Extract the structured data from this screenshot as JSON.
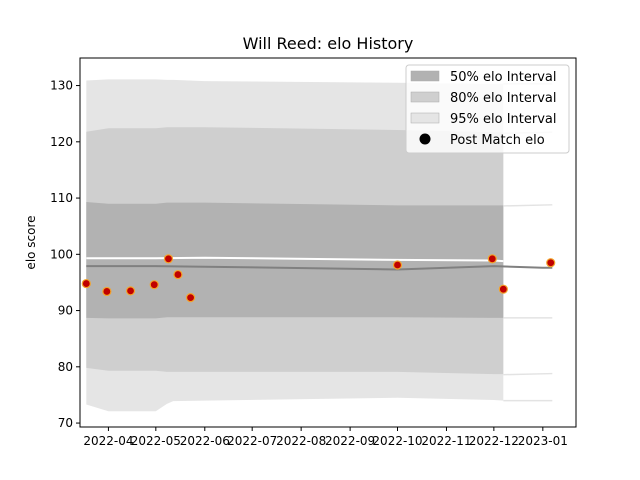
{
  "chart_data": {
    "type": "line",
    "title": "Will Reed: elo History",
    "ylabel": "elo score",
    "xlabel": "",
    "ylim": [
      69.3,
      134.9
    ],
    "xlim": [
      "2022-03-14",
      "2023-01-22"
    ],
    "x_ticks": [
      "2022-04",
      "2022-05",
      "2022-06",
      "2022-07",
      "2022-08",
      "2022-09",
      "2022-10",
      "2022-11",
      "2022-12",
      "2023-01"
    ],
    "y_ticks": [
      70,
      80,
      90,
      100,
      110,
      120,
      130
    ],
    "legend": {
      "placement": "top-right",
      "entries": [
        "50% elo Interval",
        "80% elo Interval",
        "95% elo Interval",
        "Post Match elo"
      ]
    },
    "colors": {
      "band50": "#b2b2b2",
      "band80": "#cfcfcf",
      "band95": "#e5e5e5",
      "mean_line": "#808080",
      "upper_line": "#ffffff",
      "point_fill": "#c00000",
      "point_edge": "#f3a32a"
    },
    "mean": [
      {
        "x": "2022-03-18",
        "y": 97.9
      },
      {
        "x": "2022-04-01",
        "y": 97.9
      },
      {
        "x": "2022-05-01",
        "y": 97.9
      },
      {
        "x": "2022-06-01",
        "y": 97.8
      },
      {
        "x": "2022-10-01",
        "y": 97.3
      },
      {
        "x": "2022-12-01",
        "y": 97.9
      },
      {
        "x": "2023-01-01",
        "y": 97.6
      },
      {
        "x": "2023-01-07",
        "y": 97.6
      }
    ],
    "upper_line": [
      {
        "x": "2022-03-18",
        "y": 99.3
      },
      {
        "x": "2022-05-01",
        "y": 99.3
      },
      {
        "x": "2022-06-01",
        "y": 99.4
      },
      {
        "x": "2022-10-01",
        "y": 99.0
      },
      {
        "x": "2022-12-01",
        "y": 98.9
      },
      {
        "x": "2022-12-07",
        "y": 98.8
      }
    ],
    "band50": {
      "x": [
        "2022-03-18",
        "2022-04-01",
        "2022-05-01",
        "2022-05-08",
        "2022-06-01",
        "2022-10-01",
        "2022-12-01",
        "2022-12-07"
      ],
      "lower": [
        88.7,
        88.6,
        88.6,
        88.8,
        88.8,
        88.8,
        88.7,
        88.7
      ],
      "upper": [
        109.3,
        109.0,
        109.0,
        109.2,
        109.2,
        108.7,
        108.7,
        108.7
      ]
    },
    "band80": {
      "x": [
        "2022-03-18",
        "2022-04-01",
        "2022-05-01",
        "2022-05-08",
        "2022-06-01",
        "2022-10-01",
        "2022-12-01",
        "2022-12-07"
      ],
      "lower": [
        79.8,
        79.3,
        79.3,
        79.1,
        79.1,
        79.1,
        78.7,
        78.7
      ],
      "upper": [
        121.8,
        122.4,
        122.4,
        122.6,
        122.6,
        122.1,
        121.7,
        121.7
      ]
    },
    "band95": {
      "x": [
        "2022-03-18",
        "2022-04-01",
        "2022-05-01",
        "2022-05-08",
        "2022-05-12",
        "2022-06-01",
        "2022-10-01",
        "2022-12-01",
        "2022-12-07"
      ],
      "lower": [
        73.3,
        72.1,
        72.1,
        73.4,
        73.9,
        74.0,
        74.5,
        74.1,
        74.0
      ],
      "upper": [
        130.9,
        131.1,
        131.1,
        131.0,
        131.0,
        130.8,
        130.5,
        130.3,
        130.3
      ]
    },
    "lone_interval": {
      "x": [
        "2022-12-07",
        "2023-01-07"
      ],
      "band50": {
        "lower": [
          88.7,
          88.7
        ],
        "upper": [
          108.6,
          108.8
        ]
      },
      "band80": {
        "lower": [
          78.6,
          78.8
        ],
        "upper": [
          121.5,
          121.7
        ]
      },
      "band95": {
        "lower": [
          74.0,
          74.0
        ],
        "upper": [
          130.3,
          130.3
        ]
      }
    },
    "points": [
      {
        "x": "2022-03-18",
        "y": 94.8
      },
      {
        "x": "2022-03-31",
        "y": 93.4
      },
      {
        "x": "2022-04-15",
        "y": 93.5
      },
      {
        "x": "2022-04-30",
        "y": 94.6
      },
      {
        "x": "2022-05-09",
        "y": 99.2
      },
      {
        "x": "2022-05-15",
        "y": 96.4
      },
      {
        "x": "2022-05-23",
        "y": 92.3
      },
      {
        "x": "2022-10-01",
        "y": 98.1
      },
      {
        "x": "2022-11-30",
        "y": 99.2
      },
      {
        "x": "2022-12-07",
        "y": 93.8
      },
      {
        "x": "2023-01-06",
        "y": 98.5
      }
    ]
  }
}
